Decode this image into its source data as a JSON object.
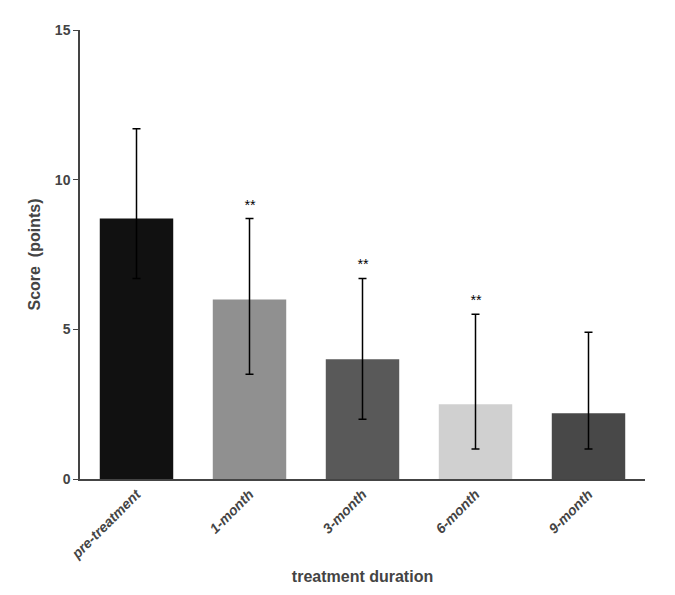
{
  "chart_data": {
    "type": "bar",
    "categories": [
      "pre-treatment",
      "1-month",
      "3-month",
      "6-month",
      "9-month"
    ],
    "values": [
      8.7,
      6.0,
      4.0,
      2.5,
      2.2
    ],
    "error_lower": [
      2.0,
      2.5,
      2.0,
      1.5,
      1.2
    ],
    "error_upper": [
      3.0,
      2.7,
      2.7,
      3.0,
      2.7
    ],
    "colors": [
      "#111111",
      "#909090",
      "#595959",
      "#d0d0d0",
      "#484848"
    ],
    "annotations": [
      {
        "category": "1-month",
        "text": "**"
      },
      {
        "category": "3-month",
        "text": "**"
      },
      {
        "category": "6-month",
        "text": "**"
      }
    ],
    "ylabel": "Score  (points)",
    "xlabel": "treatment duration",
    "ylim": [
      0,
      15
    ],
    "yticks": [
      0,
      5,
      10,
      15
    ],
    "grid": false
  }
}
